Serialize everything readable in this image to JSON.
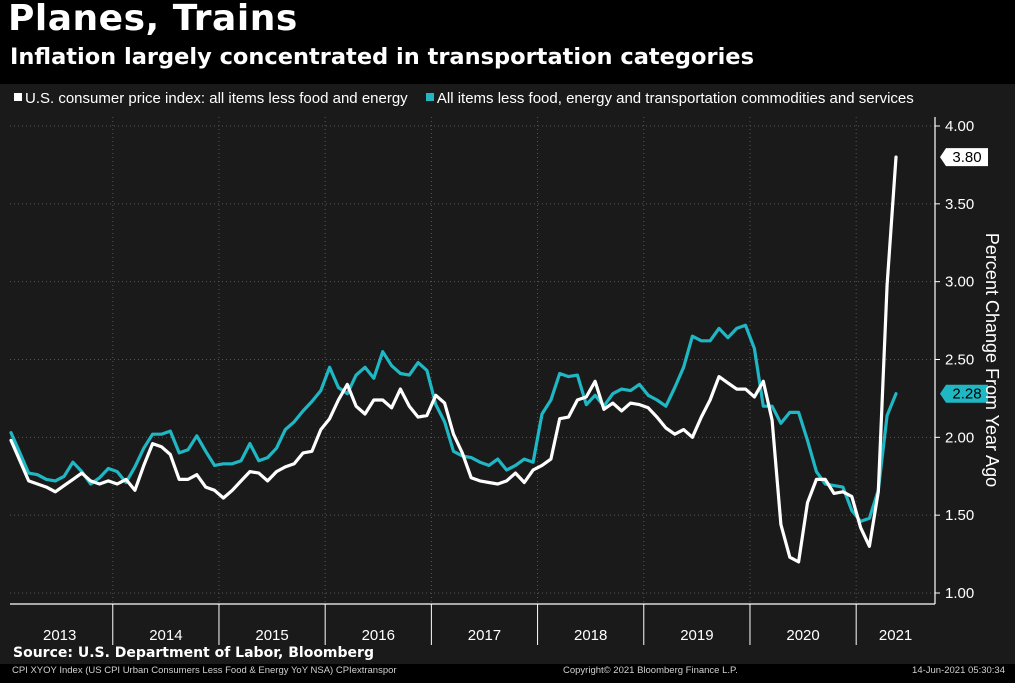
{
  "header": {
    "title": "Planes, Trains",
    "subtitle": "Inflation largely concentrated in transportation categories"
  },
  "source": "Source: U.S. Department of Labor, Bloomberg",
  "footer": {
    "left": "CPI XYOY Index (US CPI Urban Consumers Less Food & Energy YoY NSA) CPIextranspor",
    "middle": "Copyright© 2021 Bloomberg Finance L.P.",
    "right": "14-Jun-2021 05:30:34"
  },
  "colors": {
    "background": "#1a1a1a",
    "series1": "#ffffff",
    "series2": "#1fb7c3",
    "grid": "#555555"
  },
  "chart_data": {
    "type": "line",
    "title": "Planes, Trains",
    "subtitle": "Inflation largely concentrated in transportation categories",
    "ylabel": "Percent Change From Year Ago",
    "ylim": [
      1.0,
      4.0
    ],
    "yticks": [
      "4.00",
      "3.50",
      "3.00",
      "2.50",
      "2.00",
      "1.50",
      "1.00"
    ],
    "grid": true,
    "legend": "top-left",
    "x_start": "2013-01",
    "x_end": "2021-05",
    "year_labels": [
      "2013",
      "2014",
      "2015",
      "2016",
      "2017",
      "2018",
      "2019",
      "2020",
      "2021"
    ],
    "series": [
      {
        "name": "U.S. consumer price index: all items less food and energy",
        "color": "#ffffff",
        "last_value": "3.80",
        "values": [
          1.98,
          1.85,
          1.72,
          1.7,
          1.68,
          1.65,
          1.69,
          1.73,
          1.77,
          1.72,
          1.7,
          1.72,
          1.7,
          1.73,
          1.66,
          1.82,
          1.96,
          1.94,
          1.89,
          1.73,
          1.73,
          1.76,
          1.68,
          1.66,
          1.61,
          1.66,
          1.72,
          1.78,
          1.77,
          1.72,
          1.78,
          1.81,
          1.83,
          1.9,
          1.91,
          2.05,
          2.12,
          2.24,
          2.34,
          2.2,
          2.15,
          2.24,
          2.24,
          2.19,
          2.31,
          2.2,
          2.13,
          2.14,
          2.27,
          2.22,
          2.02,
          1.9,
          1.74,
          1.72,
          1.71,
          1.7,
          1.72,
          1.77,
          1.71,
          1.79,
          1.82,
          1.86,
          2.12,
          2.13,
          2.24,
          2.26,
          2.36,
          2.18,
          2.22,
          2.17,
          2.22,
          2.21,
          2.19,
          2.13,
          2.06,
          2.02,
          2.05,
          2.0,
          2.13,
          2.24,
          2.39,
          2.35,
          2.31,
          2.31,
          2.26,
          2.36,
          2.11,
          1.44,
          1.23,
          1.2,
          1.58,
          1.73,
          1.73,
          1.64,
          1.65,
          1.62,
          1.42,
          1.3,
          1.65,
          2.98,
          3.8
        ]
      },
      {
        "name": "All items less food, energy and transportation commodities and services",
        "color": "#1fb7c3",
        "last_value": "2.28",
        "values": [
          2.03,
          1.9,
          1.77,
          1.76,
          1.73,
          1.72,
          1.75,
          1.84,
          1.78,
          1.7,
          1.74,
          1.8,
          1.78,
          1.71,
          1.81,
          1.93,
          2.02,
          2.02,
          2.04,
          1.9,
          1.92,
          2.01,
          1.91,
          1.82,
          1.83,
          1.83,
          1.85,
          1.96,
          1.85,
          1.87,
          1.93,
          2.05,
          2.1,
          2.17,
          2.23,
          2.3,
          2.45,
          2.32,
          2.28,
          2.4,
          2.45,
          2.38,
          2.55,
          2.46,
          2.41,
          2.4,
          2.48,
          2.43,
          2.21,
          2.1,
          1.91,
          1.88,
          1.87,
          1.84,
          1.82,
          1.86,
          1.79,
          1.82,
          1.86,
          1.84,
          2.15,
          2.24,
          2.41,
          2.39,
          2.4,
          2.21,
          2.27,
          2.2,
          2.28,
          2.31,
          2.3,
          2.34,
          2.27,
          2.24,
          2.2,
          2.32,
          2.45,
          2.65,
          2.62,
          2.62,
          2.7,
          2.64,
          2.7,
          2.72,
          2.57,
          2.2,
          2.2,
          2.09,
          2.16,
          2.16,
          1.98,
          1.78,
          1.7,
          1.69,
          1.68,
          1.53,
          1.46,
          1.48,
          1.66,
          2.14,
          2.28
        ]
      }
    ]
  }
}
